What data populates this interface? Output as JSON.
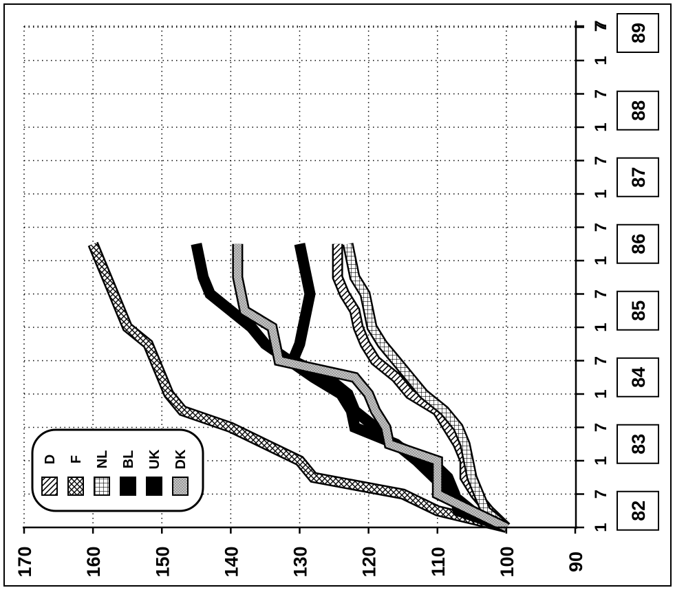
{
  "chart_data": {
    "type": "line",
    "title": "",
    "xlabel": "",
    "ylabel": "",
    "ylim": [
      90,
      170
    ],
    "y_ticks": [
      "90",
      "100",
      "110",
      "120",
      "130",
      "140",
      "150",
      "160",
      "170"
    ],
    "grid": true,
    "legend_position": "bottom-left",
    "year_labels": [
      "82",
      "83",
      "84",
      "85",
      "86",
      "87",
      "88",
      "89"
    ],
    "month_ticks": [
      "1",
      "7",
      "1",
      "7",
      "1",
      "7",
      "1",
      "7",
      "1",
      "7",
      "1",
      "7",
      "1",
      "7",
      "1",
      "7"
    ],
    "x_start": 1982.0,
    "x_step": 0.25,
    "series": [
      {
        "name": "D",
        "pattern": "diag-hatch",
        "color": "#000000",
        "values": [
          100,
          102.5,
          104.5,
          106,
          106,
          107,
          108.5,
          110,
          114,
          116,
          119,
          120.5,
          121.5,
          122,
          123.5,
          124.5,
          124.5,
          124.5
        ]
      },
      {
        "name": "F",
        "pattern": "crosshatch",
        "color": "#000000",
        "values": [
          100,
          110,
          115,
          128,
          130,
          135,
          140,
          147,
          149,
          150,
          151,
          152,
          155,
          156,
          157,
          158,
          159,
          160
        ]
      },
      {
        "name": "NL",
        "pattern": "vertical-hatch",
        "color": "#000000",
        "values": [
          100,
          103,
          104,
          105,
          105.5,
          106,
          107,
          109,
          112,
          114,
          116,
          118,
          119.5,
          120,
          120.5,
          122,
          122.5,
          123
        ]
      },
      {
        "name": "BL",
        "pattern": "solid",
        "color": "#000000",
        "values": [
          100,
          107,
          107.5,
          108.5,
          111,
          116.5,
          119,
          122,
          123,
          126,
          131,
          130,
          129.5,
          129,
          128.5,
          129,
          129.5,
          130
        ]
      },
      {
        "name": "UK",
        "pattern": "solid-outlined",
        "color": "#000000",
        "values": [
          100,
          105,
          108,
          110.5,
          113,
          116,
          122,
          122.5,
          124,
          128,
          131.5,
          135,
          137,
          140,
          143,
          144,
          144.5,
          145
        ]
      },
      {
        "name": "DK",
        "pattern": "dotted-fill",
        "color": "#b0b0b0",
        "values": [
          100,
          105,
          110,
          110,
          110,
          117,
          117.5,
          119,
          120,
          122,
          133,
          133.5,
          134,
          138,
          138.5,
          139,
          139,
          139
        ]
      }
    ]
  }
}
